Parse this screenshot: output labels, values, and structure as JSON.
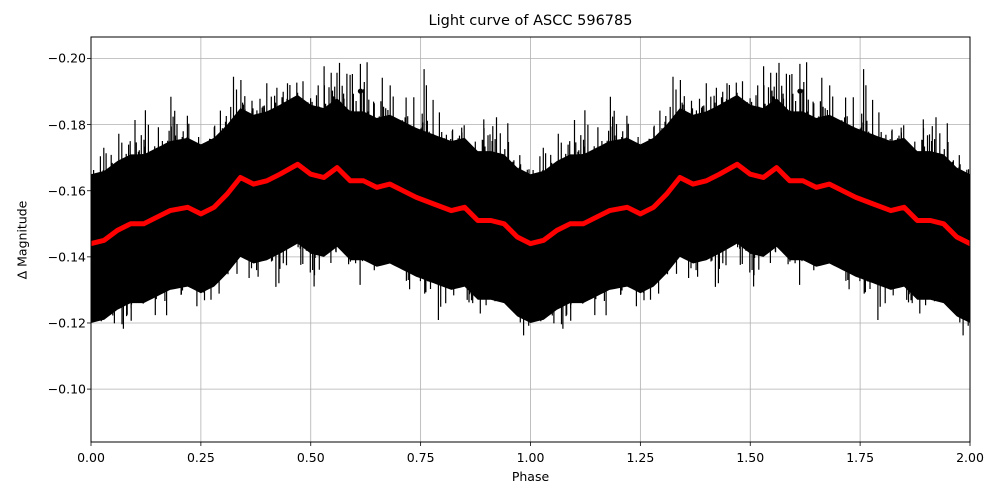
{
  "chart_data": {
    "type": "scatter",
    "title": "Light curve of ASCC 596785",
    "xlabel": "Phase",
    "ylabel": "Δ Magnitude",
    "xlim": [
      0.0,
      2.0
    ],
    "ylim": [
      -0.084,
      -0.2065
    ],
    "y_inverted": true,
    "grid": true,
    "legend": null,
    "xticks": [
      "0.00",
      "0.25",
      "0.50",
      "0.75",
      "1.00",
      "1.25",
      "1.50",
      "1.75",
      "2.00"
    ],
    "xtick_values": [
      0.0,
      0.25,
      0.5,
      0.75,
      1.0,
      1.25,
      1.5,
      1.75,
      2.0
    ],
    "yticks": [
      "−0.20",
      "−0.18",
      "−0.16",
      "−0.14",
      "−0.12",
      "−0.10"
    ],
    "ytick_values": [
      -0.2,
      -0.18,
      -0.16,
      -0.14,
      -0.12,
      -0.1
    ],
    "series": [
      {
        "name": "observations",
        "kind": "errorbar-scatter",
        "color": "#000000",
        "description": "Dense phase-folded photometry with error bars, repeated over phase 0-2; bulk of points between -0.19 and -0.11 magnitude, overflowing both y limits",
        "center_trend": "follows smoothed curve",
        "spread_approx": 0.03
      },
      {
        "name": "binned/smoothed light curve",
        "kind": "line",
        "color": "#ff0000",
        "linewidth": 5,
        "x": [
          0.0,
          0.03,
          0.06,
          0.09,
          0.12,
          0.15,
          0.18,
          0.22,
          0.25,
          0.28,
          0.31,
          0.34,
          0.37,
          0.4,
          0.43,
          0.47,
          0.5,
          0.53,
          0.56,
          0.59,
          0.62,
          0.65,
          0.68,
          0.71,
          0.74,
          0.78,
          0.82,
          0.85,
          0.88,
          0.91,
          0.94,
          0.97,
          1.0,
          1.03,
          1.06,
          1.09,
          1.12,
          1.15,
          1.18,
          1.22,
          1.25,
          1.28,
          1.31,
          1.34,
          1.37,
          1.4,
          1.43,
          1.47,
          1.5,
          1.53,
          1.56,
          1.59,
          1.62,
          1.65,
          1.68,
          1.71,
          1.74,
          1.78,
          1.82,
          1.85,
          1.88,
          1.91,
          1.94,
          1.97,
          2.0
        ],
        "y": [
          -0.144,
          -0.145,
          -0.148,
          -0.15,
          -0.15,
          -0.152,
          -0.154,
          -0.155,
          -0.153,
          -0.155,
          -0.159,
          -0.164,
          -0.162,
          -0.163,
          -0.165,
          -0.168,
          -0.165,
          -0.164,
          -0.167,
          -0.163,
          -0.163,
          -0.161,
          -0.162,
          -0.16,
          -0.158,
          -0.156,
          -0.154,
          -0.155,
          -0.151,
          -0.151,
          -0.15,
          -0.146,
          -0.144,
          -0.145,
          -0.148,
          -0.15,
          -0.15,
          -0.152,
          -0.154,
          -0.155,
          -0.153,
          -0.155,
          -0.159,
          -0.164,
          -0.162,
          -0.163,
          -0.165,
          -0.168,
          -0.165,
          -0.164,
          -0.167,
          -0.163,
          -0.163,
          -0.161,
          -0.162,
          -0.16,
          -0.158,
          -0.156,
          -0.154,
          -0.155,
          -0.151,
          -0.151,
          -0.15,
          -0.146,
          -0.144
        ]
      }
    ]
  },
  "colors": {
    "data": "#000000",
    "fit": "#ff0000",
    "grid": "#b0b0b0",
    "background": "#ffffff"
  }
}
